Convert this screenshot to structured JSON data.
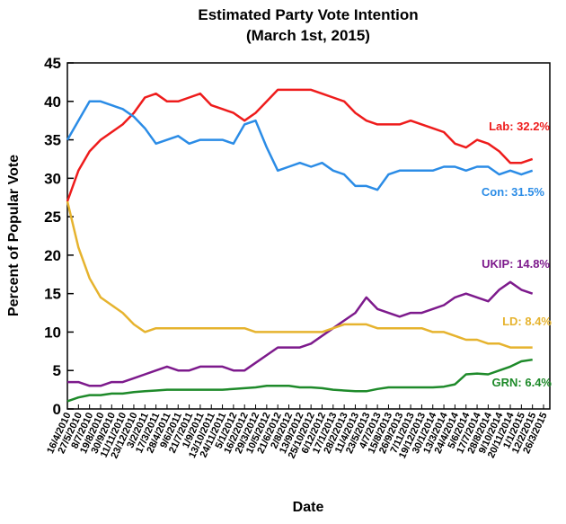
{
  "chart_data": {
    "type": "line",
    "title": "Estimated Party Vote Intention",
    "subtitle": "(March 1st, 2015)",
    "y_label": "Percent of Popular Vote",
    "x_label": "Date",
    "categories": [
      "16/4/2010",
      "27/5/2010",
      "8/7/2010",
      "19/8/2010",
      "30/9/2010",
      "11/11/2010",
      "23/12/2010",
      "3/2/2011",
      "17/3/2011",
      "28/4/2011",
      "9/6/2011",
      "21/7/2011",
      "1/9/2011",
      "13/10/2011",
      "24/11/2011",
      "5/1/2012",
      "16/2/2012",
      "29/3/2012",
      "10/5/2012",
      "21/6/2012",
      "2/8/2012",
      "13/9/2012",
      "25/10/2012",
      "6/12/2012",
      "17/1/2013",
      "28/2/2013",
      "11/4/2013",
      "23/5/2013",
      "4/7/2013",
      "15/8/2013",
      "26/9/2013",
      "7/11/2013",
      "19/12/2013",
      "30/1/2014",
      "13/3/2014",
      "24/4/2014",
      "5/6/2014",
      "17/7/2014",
      "28/8/2014",
      "9/10/2014",
      "20/11/2014",
      "1/1/2015",
      "12/2/2015",
      "26/3/2015"
    ],
    "series": [
      {
        "name": "Lab: 32.2%",
        "color": "#ee1c1c",
        "values": [
          27,
          31,
          33.5,
          35,
          36,
          37,
          38.5,
          40.5,
          41,
          40,
          40,
          40.5,
          41,
          39.5,
          39,
          38.5,
          37.5,
          38.5,
          40,
          41.5,
          41.5,
          41.5,
          41.5,
          41,
          40.5,
          40,
          38.5,
          37.5,
          37,
          37,
          37,
          37.5,
          37,
          36.5,
          36,
          34.5,
          34,
          35,
          34.5,
          33.5,
          32,
          32,
          32.5,
          null
        ]
      },
      {
        "name": "Con: 31.5%",
        "color": "#2b8ce6",
        "values": [
          35,
          37.5,
          40,
          40,
          39.5,
          39,
          38,
          36.5,
          34.5,
          35,
          35.5,
          34.5,
          35,
          35,
          35,
          34.5,
          37,
          37.5,
          34,
          31,
          31.5,
          32,
          31.5,
          32,
          31,
          30.5,
          29,
          29,
          28.5,
          30.5,
          31,
          31,
          31,
          31,
          31.5,
          31.5,
          31,
          31.5,
          31.5,
          30.5,
          31,
          30.5,
          31,
          null
        ]
      },
      {
        "name": "UKIP: 14.8%",
        "color": "#7d1a8c",
        "values": [
          3.5,
          3.5,
          3,
          3,
          3.5,
          3.5,
          4,
          4.5,
          5,
          5.5,
          5,
          5,
          5.5,
          5.5,
          5.5,
          5,
          5,
          6,
          7,
          8,
          8,
          8,
          8.5,
          9.5,
          10.5,
          11.5,
          12.5,
          14.5,
          13,
          12.5,
          12,
          12.5,
          12.5,
          13,
          13.5,
          14.5,
          15,
          14.5,
          14,
          15.5,
          16.5,
          15.5,
          15,
          null
        ]
      },
      {
        "name": "LD: 8.4%",
        "color": "#e6b32e",
        "values": [
          27,
          21,
          17,
          14.5,
          13.5,
          12.5,
          11,
          10,
          10.5,
          10.5,
          10.5,
          10.5,
          10.5,
          10.5,
          10.5,
          10.5,
          10.5,
          10,
          10,
          10,
          10,
          10,
          10,
          10,
          10.5,
          11,
          11,
          11,
          10.5,
          10.5,
          10.5,
          10.5,
          10.5,
          10,
          10,
          9.5,
          9,
          9,
          8.5,
          8.5,
          8,
          8,
          8,
          null
        ]
      },
      {
        "name": "GRN: 6.4%",
        "color": "#1e8a2a",
        "values": [
          1,
          1.5,
          1.8,
          1.8,
          2,
          2,
          2.2,
          2.3,
          2.4,
          2.5,
          2.5,
          2.5,
          2.5,
          2.5,
          2.5,
          2.6,
          2.7,
          2.8,
          3,
          3,
          3,
          2.8,
          2.8,
          2.7,
          2.5,
          2.4,
          2.3,
          2.3,
          2.6,
          2.8,
          2.8,
          2.8,
          2.8,
          2.8,
          2.9,
          3.2,
          4.5,
          4.6,
          4.5,
          5,
          5.5,
          6.2,
          6.4,
          null
        ]
      }
    ],
    "ylim": [
      0,
      45
    ],
    "yticks": [
      0,
      5,
      10,
      15,
      20,
      25,
      30,
      35,
      40,
      45
    ]
  }
}
